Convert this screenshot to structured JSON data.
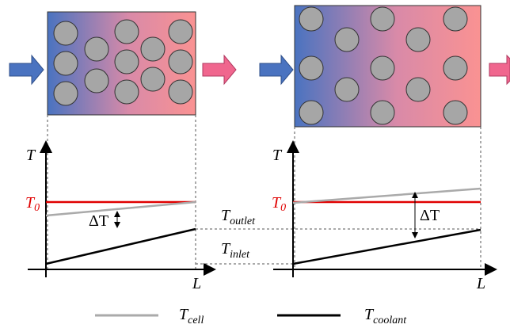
{
  "left_plot": {
    "y_axis_label": "T",
    "t0_label": {
      "main": "T",
      "sub": "0"
    },
    "delta_label": "ΔT",
    "x_axis_label": "L"
  },
  "right_plot": {
    "y_axis_label": "T",
    "t0_label": {
      "main": "T",
      "sub": "0"
    },
    "delta_label": "ΔT",
    "x_axis_label": "L"
  },
  "outlet_label": {
    "main": "T",
    "sub": "outlet"
  },
  "inlet_label": {
    "main": "T",
    "sub": "inlet"
  },
  "legend": [
    {
      "main": "T",
      "sub": "cell"
    },
    {
      "main": "T",
      "sub": "coolant"
    }
  ]
}
